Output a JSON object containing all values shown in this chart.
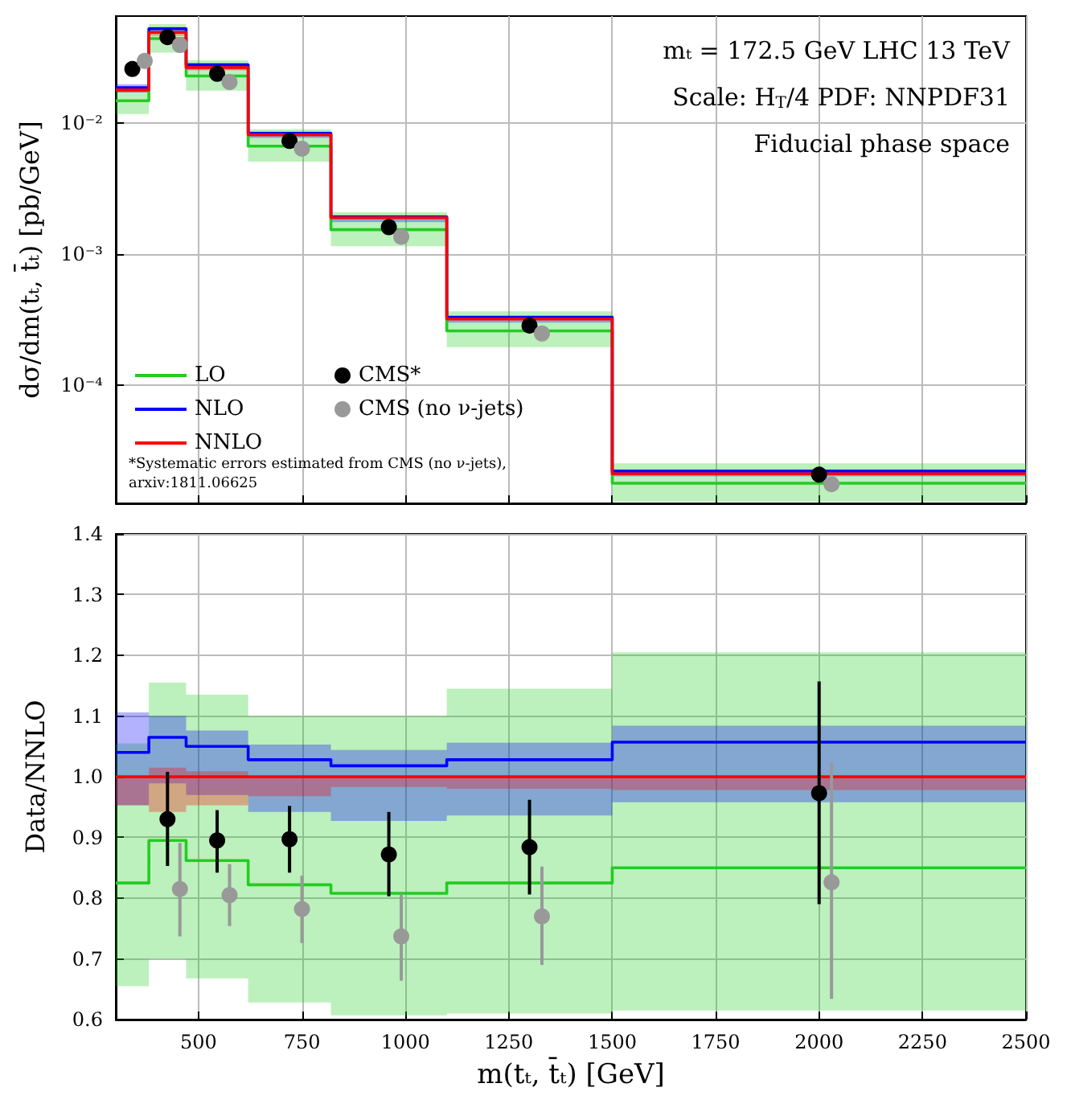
{
  "chart_data": [
    {
      "type": "step",
      "ylabel": "dσ/dm(tₜ, t̄ₜ) [pb/GeV]",
      "annotations": [
        "mₜ = 172.5 GeV LHC 13 TeV",
        "Scale: H$_{T}$/4 PDF: NNPDF31",
        "Fiducial phase space",
        "*Systematic errors estimated from CMS (no ν-jets), arxiv:1811.06625"
      ],
      "x": [
        300,
        380,
        470,
        620,
        820,
        1100,
        1500,
        2500
      ],
      "series": [
        {
          "name": "LO",
          "color": "#22cc22",
          "values": [
            0.0149,
            0.0444,
            0.023,
            0.0067,
            0.00154,
            0.00026,
            1.78e-05,
            1.78e-05
          ],
          "lower": [
            0.0118,
            0.0347,
            0.0178,
            0.0051,
            0.00115,
            0.000195,
            1.29e-05,
            1.29e-05
          ],
          "upper": [
            0.019,
            0.0573,
            0.0303,
            0.009,
            0.00209,
            0.000366,
            2.53e-05,
            2.53e-05
          ]
        },
        {
          "name": "NLO",
          "color": "#0000ff",
          "values": [
            0.0187,
            0.0528,
            0.028,
            0.0084,
            0.00193,
            0.00033,
            2.2e-05,
            2.2e-05
          ],
          "lower": [
            0.0172,
            0.0491,
            0.0259,
            0.00773,
            0.00176,
            0.0003,
            2.01e-05,
            2.01e-05
          ],
          "upper": [
            0.0199,
            0.0546,
            0.0287,
            0.00865,
            0.00199,
            0.000338,
            2.27e-05,
            2.27e-05
          ]
        },
        {
          "name": "NNLO",
          "color": "#ff0000",
          "values": [
            0.018,
            0.0496,
            0.0267,
            0.0082,
            0.0019,
            0.00032,
            2.1e-05,
            2.1e-05
          ],
          "lower": [
            0.0172,
            0.0467,
            0.0254,
            0.00794,
            0.00187,
            0.000314,
            2.05e-05,
            2.05e-05
          ],
          "upper": [
            0.018,
            0.0503,
            0.0269,
            0.0082,
            0.0019,
            0.00032,
            2.1e-05,
            2.1e-05
          ]
        },
        {
          "name": "CMS*",
          "type": "scatter",
          "marker": "circle",
          "color": "#000000",
          "x": [
            340,
            425,
            545,
            720,
            960,
            1300,
            2000
          ],
          "values": [
            0.026,
            0.0456,
            0.0239,
            0.00734,
            0.00161,
            0.000285,
            2.07e-05
          ]
        },
        {
          "name": "CMS (no ν-jets)",
          "type": "scatter",
          "marker": "circle",
          "color": "#999999",
          "x": [
            370,
            455,
            575,
            750,
            990,
            1330,
            2030
          ],
          "values": [
            0.03,
            0.0396,
            0.0207,
            0.0064,
            0.00136,
            0.000248,
            1.75e-05
          ]
        }
      ],
      "xlim": [
        300,
        2500
      ],
      "ylim": [
        1.25e-05,
        0.066
      ],
      "xticks": [
        500,
        750,
        1000,
        1250,
        1500,
        1750,
        2000,
        2250,
        2500
      ],
      "yticks": [
        {
          "value": 0.0001,
          "label": "10⁻⁴"
        },
        {
          "value": 0.001,
          "label": "10⁻³"
        },
        {
          "value": 0.01,
          "label": "10⁻²"
        }
      ],
      "log": true,
      "grid": true,
      "legend": "bottom left",
      "tick_labels": "y"
    },
    {
      "type": "step",
      "xlabel": "m(tₜ, t̄ₜ) [GeV]",
      "ylabel": "Data/NNLO",
      "x": [
        300,
        380,
        470,
        620,
        820,
        1100,
        1500,
        2500
      ],
      "series": [
        {
          "color": "#22cc22",
          "values": [
            0.825,
            0.895,
            0.862,
            0.822,
            0.808,
            0.825,
            0.85,
            0.85
          ],
          "lower": [
            0.655,
            0.7,
            0.668,
            0.628,
            0.607,
            0.61,
            0.615,
            0.615
          ],
          "upper": [
            1.055,
            1.155,
            1.135,
            1.1,
            1.1,
            1.145,
            1.205,
            1.205
          ]
        },
        {
          "color": "#0000ff",
          "values": [
            1.04,
            1.065,
            1.05,
            1.028,
            1.018,
            1.028,
            1.057,
            1.057
          ],
          "lower": [
            0.953,
            0.989,
            0.97,
            0.942,
            0.927,
            0.936,
            0.958,
            0.958
          ],
          "upper": [
            1.106,
            1.1,
            1.076,
            1.053,
            1.044,
            1.056,
            1.084,
            1.084
          ]
        },
        {
          "color": "#ff0000",
          "values": [
            1,
            1,
            1,
            1,
            1,
            1,
            1,
            1
          ],
          "lower": [
            0.953,
            0.942,
            0.953,
            0.968,
            0.983,
            0.98,
            0.978,
            0.978
          ],
          "upper": [
            1,
            1.015,
            1.009,
            1,
            1,
            1,
            1,
            1
          ]
        },
        {
          "type": "scatter",
          "marker": "circle",
          "color": "#000000",
          "x": [
            425,
            545,
            720,
            960,
            1300,
            2000
          ],
          "values": [
            0.93,
            0.895,
            0.897,
            0.872,
            0.884,
            0.973
          ],
          "errors": [
            [
              0.853,
              1.008
            ],
            [
              0.842,
              0.945
            ],
            [
              0.842,
              0.952
            ],
            [
              0.803,
              0.942
            ],
            [
              0.806,
              0.962
            ],
            [
              0.79,
              1.157
            ]
          ]
        },
        {
          "type": "scatter",
          "marker": "circle",
          "color": "#999999",
          "x": [
            455,
            575,
            750,
            990,
            1330,
            2030
          ],
          "values": [
            0.815,
            0.805,
            0.782,
            0.737,
            0.77,
            0.826
          ],
          "errors": [
            [
              0.737,
              0.891
            ],
            [
              0.754,
              0.856
            ],
            [
              0.726,
              0.837
            ],
            [
              0.664,
              0.807
            ],
            [
              0.69,
              0.852
            ],
            [
              0.634,
              1.023
            ]
          ]
        }
      ],
      "xlim": [
        300,
        2500
      ],
      "ylim": [
        0.6,
        1.4
      ],
      "xticks": [
        500,
        750,
        1000,
        1250,
        1500,
        1750,
        2000,
        2250,
        2500
      ],
      "yticks": [
        0.6,
        0.7,
        0.8,
        0.9,
        {
          "value": 1,
          "label": "1.0"
        },
        1.1,
        1.2,
        1.3,
        1.4
      ],
      "grid": true
    }
  ]
}
